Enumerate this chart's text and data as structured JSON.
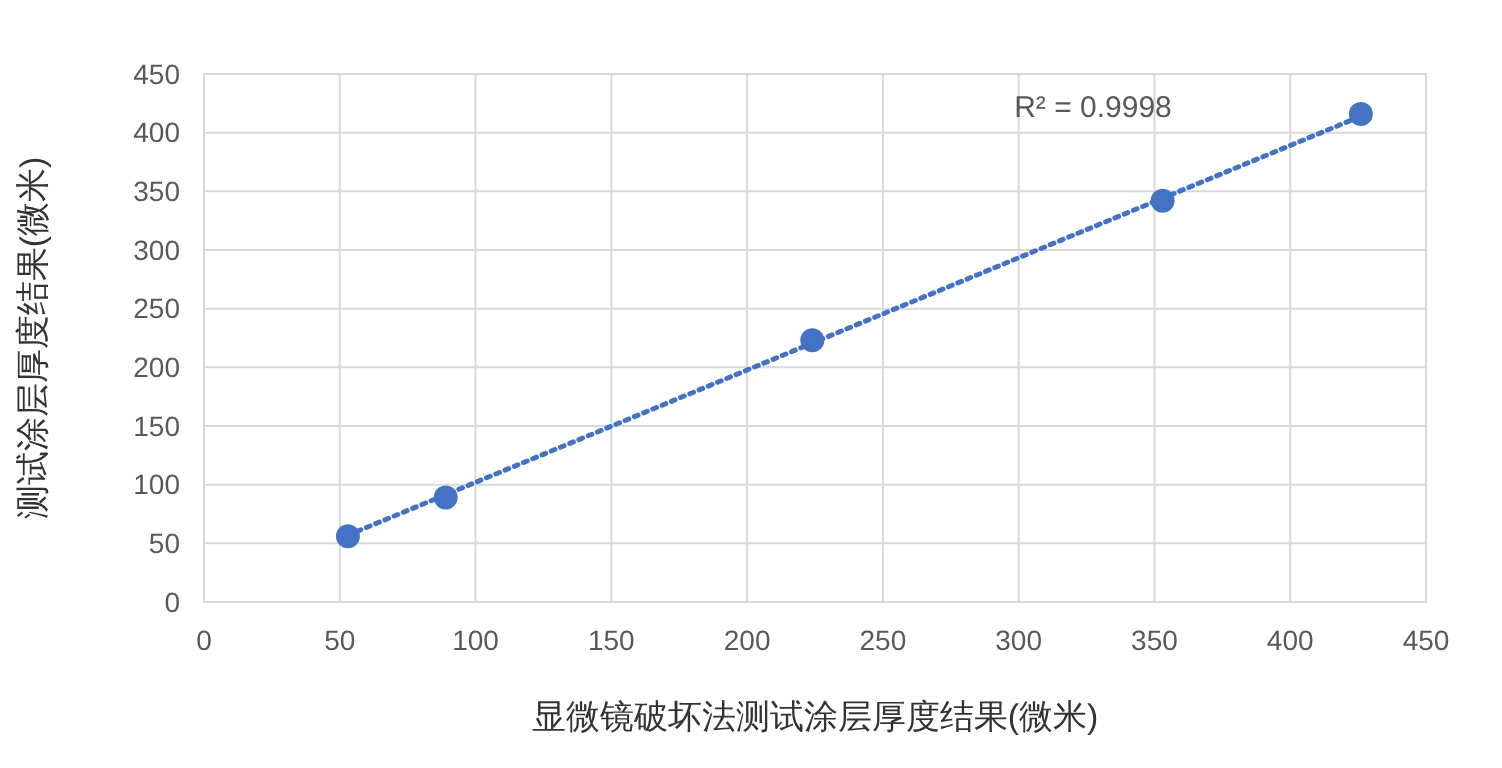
{
  "chart_data": {
    "type": "scatter",
    "xlabel": "显微镜破坏法测试涂层厚度结果(微米)",
    "ylabel": "测试涂层厚度结果(微米)",
    "xlim": [
      0,
      450
    ],
    "xticks": [
      0,
      50,
      100,
      150,
      200,
      250,
      300,
      350,
      400,
      450
    ],
    "ylim": [
      0,
      450
    ],
    "yticks": [
      0,
      50,
      100,
      150,
      200,
      250,
      300,
      350,
      400,
      450
    ],
    "grid": true,
    "series": [
      {
        "color": "#4472c4",
        "marker": "circle",
        "x": [
          53,
          89,
          224,
          353,
          426
        ],
        "values": [
          56,
          89,
          223,
          342,
          416
        ]
      },
      {
        "type": "line",
        "color": "#4472c4",
        "marker": "none",
        "line_style": "dotted",
        "x": [
          53,
          426
        ],
        "values": [
          57,
          414
        ]
      }
    ],
    "annotations": [
      "R² = 0.9998"
    ]
  }
}
